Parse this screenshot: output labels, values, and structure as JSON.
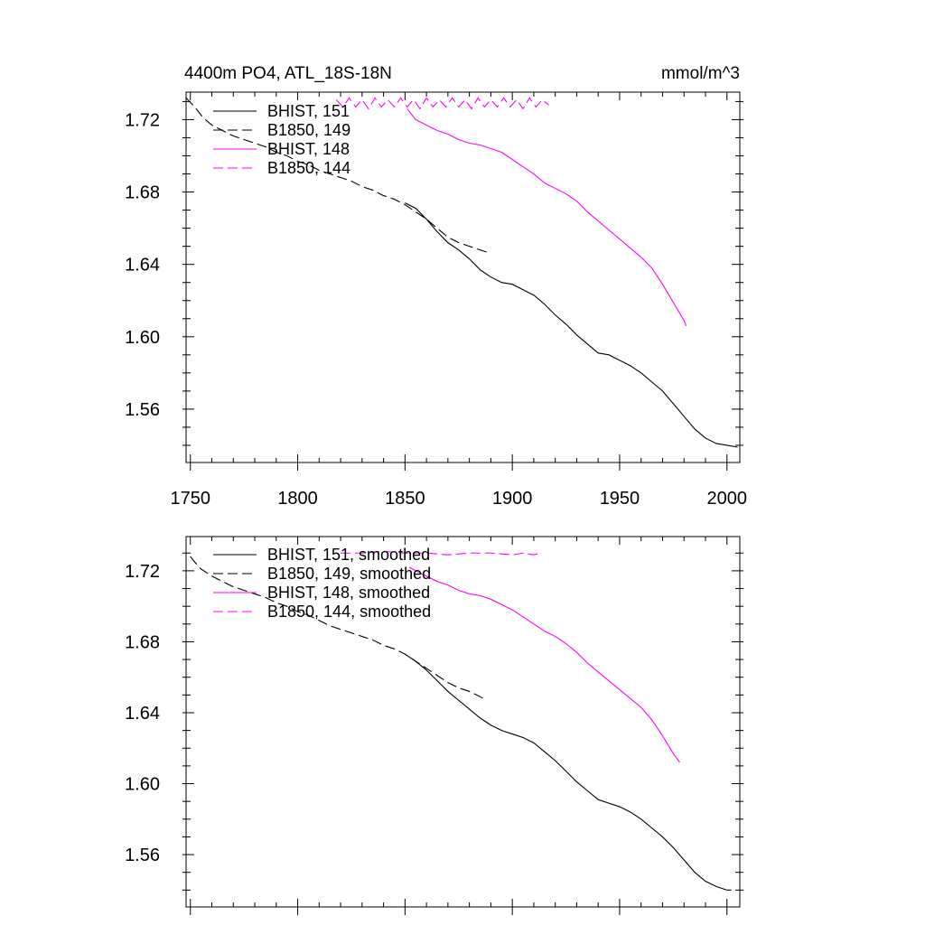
{
  "chart_data": [
    {
      "type": "line",
      "title": "4400m PO4, ATL_18S-18N",
      "units": "mmol/m^3",
      "xlim": [
        1748,
        2006
      ],
      "ylim": [
        1.5305,
        1.7352
      ],
      "xticks": [
        "1750",
        "1800",
        "1850",
        "1900",
        "1950",
        "2000"
      ],
      "xtick_values": [
        1750,
        1800,
        1850,
        1900,
        1950,
        2000
      ],
      "yticks": [
        "1.72",
        "1.68",
        "1.64",
        "1.60",
        "1.56"
      ],
      "ytick_values": [
        1.72,
        1.68,
        1.64,
        1.6,
        1.56
      ],
      "legend_position": "top-left",
      "series": [
        {
          "name": "BHIST, 151",
          "color": "#000000",
          "dash": "solid",
          "x": [
            1850,
            1855,
            1860,
            1865,
            1870,
            1875,
            1880,
            1885,
            1890,
            1895,
            1900,
            1905,
            1910,
            1915,
            1920,
            1925,
            1930,
            1935,
            1940,
            1945,
            1950,
            1955,
            1960,
            1965,
            1970,
            1975,
            1980,
            1985,
            1990,
            1995,
            2000,
            2005
          ],
          "y": [
            1.674,
            1.671,
            1.665,
            1.658,
            1.652,
            1.648,
            1.643,
            1.637,
            1.633,
            1.63,
            1.629,
            1.626,
            1.623,
            1.618,
            1.612,
            1.607,
            1.601,
            1.596,
            1.591,
            1.59,
            1.587,
            1.584,
            1.58,
            1.575,
            1.57,
            1.563,
            1.556,
            1.549,
            1.544,
            1.541,
            1.54,
            1.539
          ]
        },
        {
          "name": "B1850, 149",
          "color": "#000000",
          "dash": "dashed",
          "x": [
            1748,
            1752,
            1756,
            1760,
            1765,
            1770,
            1775,
            1780,
            1785,
            1790,
            1795,
            1800,
            1805,
            1810,
            1815,
            1820,
            1825,
            1830,
            1835,
            1840,
            1845,
            1850,
            1855,
            1860,
            1865,
            1870,
            1875,
            1880,
            1885,
            1890
          ],
          "y": [
            1.732,
            1.727,
            1.721,
            1.717,
            1.714,
            1.711,
            1.709,
            1.707,
            1.705,
            1.702,
            1.7,
            1.697,
            1.695,
            1.692,
            1.69,
            1.688,
            1.686,
            1.683,
            1.681,
            1.678,
            1.676,
            1.673,
            1.669,
            1.665,
            1.66,
            1.655,
            1.652,
            1.65,
            1.648,
            1.646
          ]
        },
        {
          "name": "BHIST, 148",
          "color": "#ff00ff",
          "dash": "solid",
          "x": [
            1851,
            1855,
            1860,
            1865,
            1870,
            1875,
            1880,
            1885,
            1890,
            1895,
            1900,
            1905,
            1910,
            1915,
            1920,
            1925,
            1930,
            1935,
            1940,
            1945,
            1950,
            1955,
            1960,
            1965,
            1970,
            1975,
            1980,
            1981
          ],
          "y": [
            1.726,
            1.72,
            1.717,
            1.714,
            1.712,
            1.709,
            1.707,
            1.706,
            1.704,
            1.702,
            1.698,
            1.694,
            1.69,
            1.685,
            1.682,
            1.679,
            1.675,
            1.669,
            1.664,
            1.659,
            1.654,
            1.649,
            1.644,
            1.638,
            1.629,
            1.619,
            1.609,
            1.606
          ]
        },
        {
          "name": "B1850, 144",
          "color": "#ff00ff",
          "dash": "dashed",
          "x": [
            1818,
            1821,
            1824,
            1827,
            1830,
            1833,
            1836,
            1839,
            1842,
            1845,
            1848,
            1851,
            1854,
            1857,
            1860,
            1863,
            1866,
            1869,
            1872,
            1875,
            1878,
            1881,
            1884,
            1887,
            1890,
            1893,
            1896,
            1899,
            1902,
            1905,
            1908,
            1911,
            1914,
            1917
          ],
          "y": [
            1.731,
            1.727,
            1.732,
            1.727,
            1.731,
            1.726,
            1.732,
            1.727,
            1.731,
            1.727,
            1.732,
            1.727,
            1.731,
            1.726,
            1.732,
            1.727,
            1.731,
            1.727,
            1.732,
            1.727,
            1.731,
            1.726,
            1.732,
            1.727,
            1.731,
            1.727,
            1.732,
            1.727,
            1.731,
            1.726,
            1.732,
            1.727,
            1.731,
            1.728
          ]
        }
      ]
    },
    {
      "type": "line",
      "xlim": [
        1748,
        2006
      ],
      "ylim": [
        1.5305,
        1.7393
      ],
      "yticks": [
        "1.72",
        "1.68",
        "1.64",
        "1.60",
        "1.56"
      ],
      "ytick_values": [
        1.72,
        1.68,
        1.64,
        1.6,
        1.56
      ],
      "legend_position": "top-left",
      "series": [
        {
          "name": "BHIST, 151, smoothed",
          "color": "#000000",
          "dash": "solid",
          "x": [
            1850,
            1855,
            1860,
            1865,
            1870,
            1875,
            1880,
            1885,
            1890,
            1895,
            1900,
            1905,
            1910,
            1915,
            1920,
            1925,
            1930,
            1935,
            1940,
            1945,
            1950,
            1955,
            1960,
            1965,
            1970,
            1975,
            1980,
            1985,
            1990,
            1995,
            2000,
            2002
          ],
          "y": [
            1.673,
            1.669,
            1.664,
            1.658,
            1.652,
            1.647,
            1.642,
            1.637,
            1.633,
            1.63,
            1.628,
            1.626,
            1.623,
            1.618,
            1.613,
            1.607,
            1.601,
            1.596,
            1.591,
            1.589,
            1.587,
            1.584,
            1.58,
            1.575,
            1.57,
            1.564,
            1.557,
            1.55,
            1.545,
            1.542,
            1.54,
            1.54
          ]
        },
        {
          "name": "B1850, 149, smoothed",
          "color": "#000000",
          "dash": "dashed",
          "x": [
            1750,
            1752,
            1755,
            1760,
            1765,
            1770,
            1775,
            1780,
            1785,
            1790,
            1795,
            1800,
            1805,
            1810,
            1815,
            1820,
            1825,
            1830,
            1835,
            1840,
            1845,
            1850,
            1855,
            1860,
            1865,
            1870,
            1875,
            1880,
            1885,
            1888
          ],
          "y": [
            1.728,
            1.725,
            1.721,
            1.717,
            1.714,
            1.711,
            1.709,
            1.707,
            1.705,
            1.702,
            1.7,
            1.697,
            1.695,
            1.692,
            1.689,
            1.687,
            1.685,
            1.683,
            1.681,
            1.678,
            1.676,
            1.673,
            1.669,
            1.665,
            1.661,
            1.657,
            1.654,
            1.652,
            1.649,
            1.647
          ]
        },
        {
          "name": "BHIST, 148, smoothed",
          "color": "#ff00ff",
          "dash": "solid",
          "x": [
            1852,
            1855,
            1860,
            1865,
            1870,
            1875,
            1880,
            1885,
            1890,
            1895,
            1900,
            1905,
            1910,
            1915,
            1920,
            1925,
            1930,
            1935,
            1940,
            1945,
            1950,
            1955,
            1960,
            1965,
            1970,
            1975,
            1978
          ],
          "y": [
            1.722,
            1.72,
            1.717,
            1.714,
            1.712,
            1.709,
            1.707,
            1.706,
            1.704,
            1.701,
            1.698,
            1.694,
            1.69,
            1.686,
            1.683,
            1.679,
            1.674,
            1.668,
            1.663,
            1.658,
            1.653,
            1.648,
            1.643,
            1.636,
            1.627,
            1.617,
            1.612
          ]
        },
        {
          "name": "B1850, 144, smoothed",
          "color": "#ff00ff",
          "dash": "dashed",
          "x": [
            1820,
            1830,
            1840,
            1850,
            1860,
            1870,
            1880,
            1890,
            1900,
            1905,
            1910,
            1913
          ],
          "y": [
            1.73,
            1.73,
            1.731,
            1.73,
            1.73,
            1.729,
            1.73,
            1.73,
            1.729,
            1.73,
            1.729,
            1.73
          ]
        }
      ]
    }
  ]
}
